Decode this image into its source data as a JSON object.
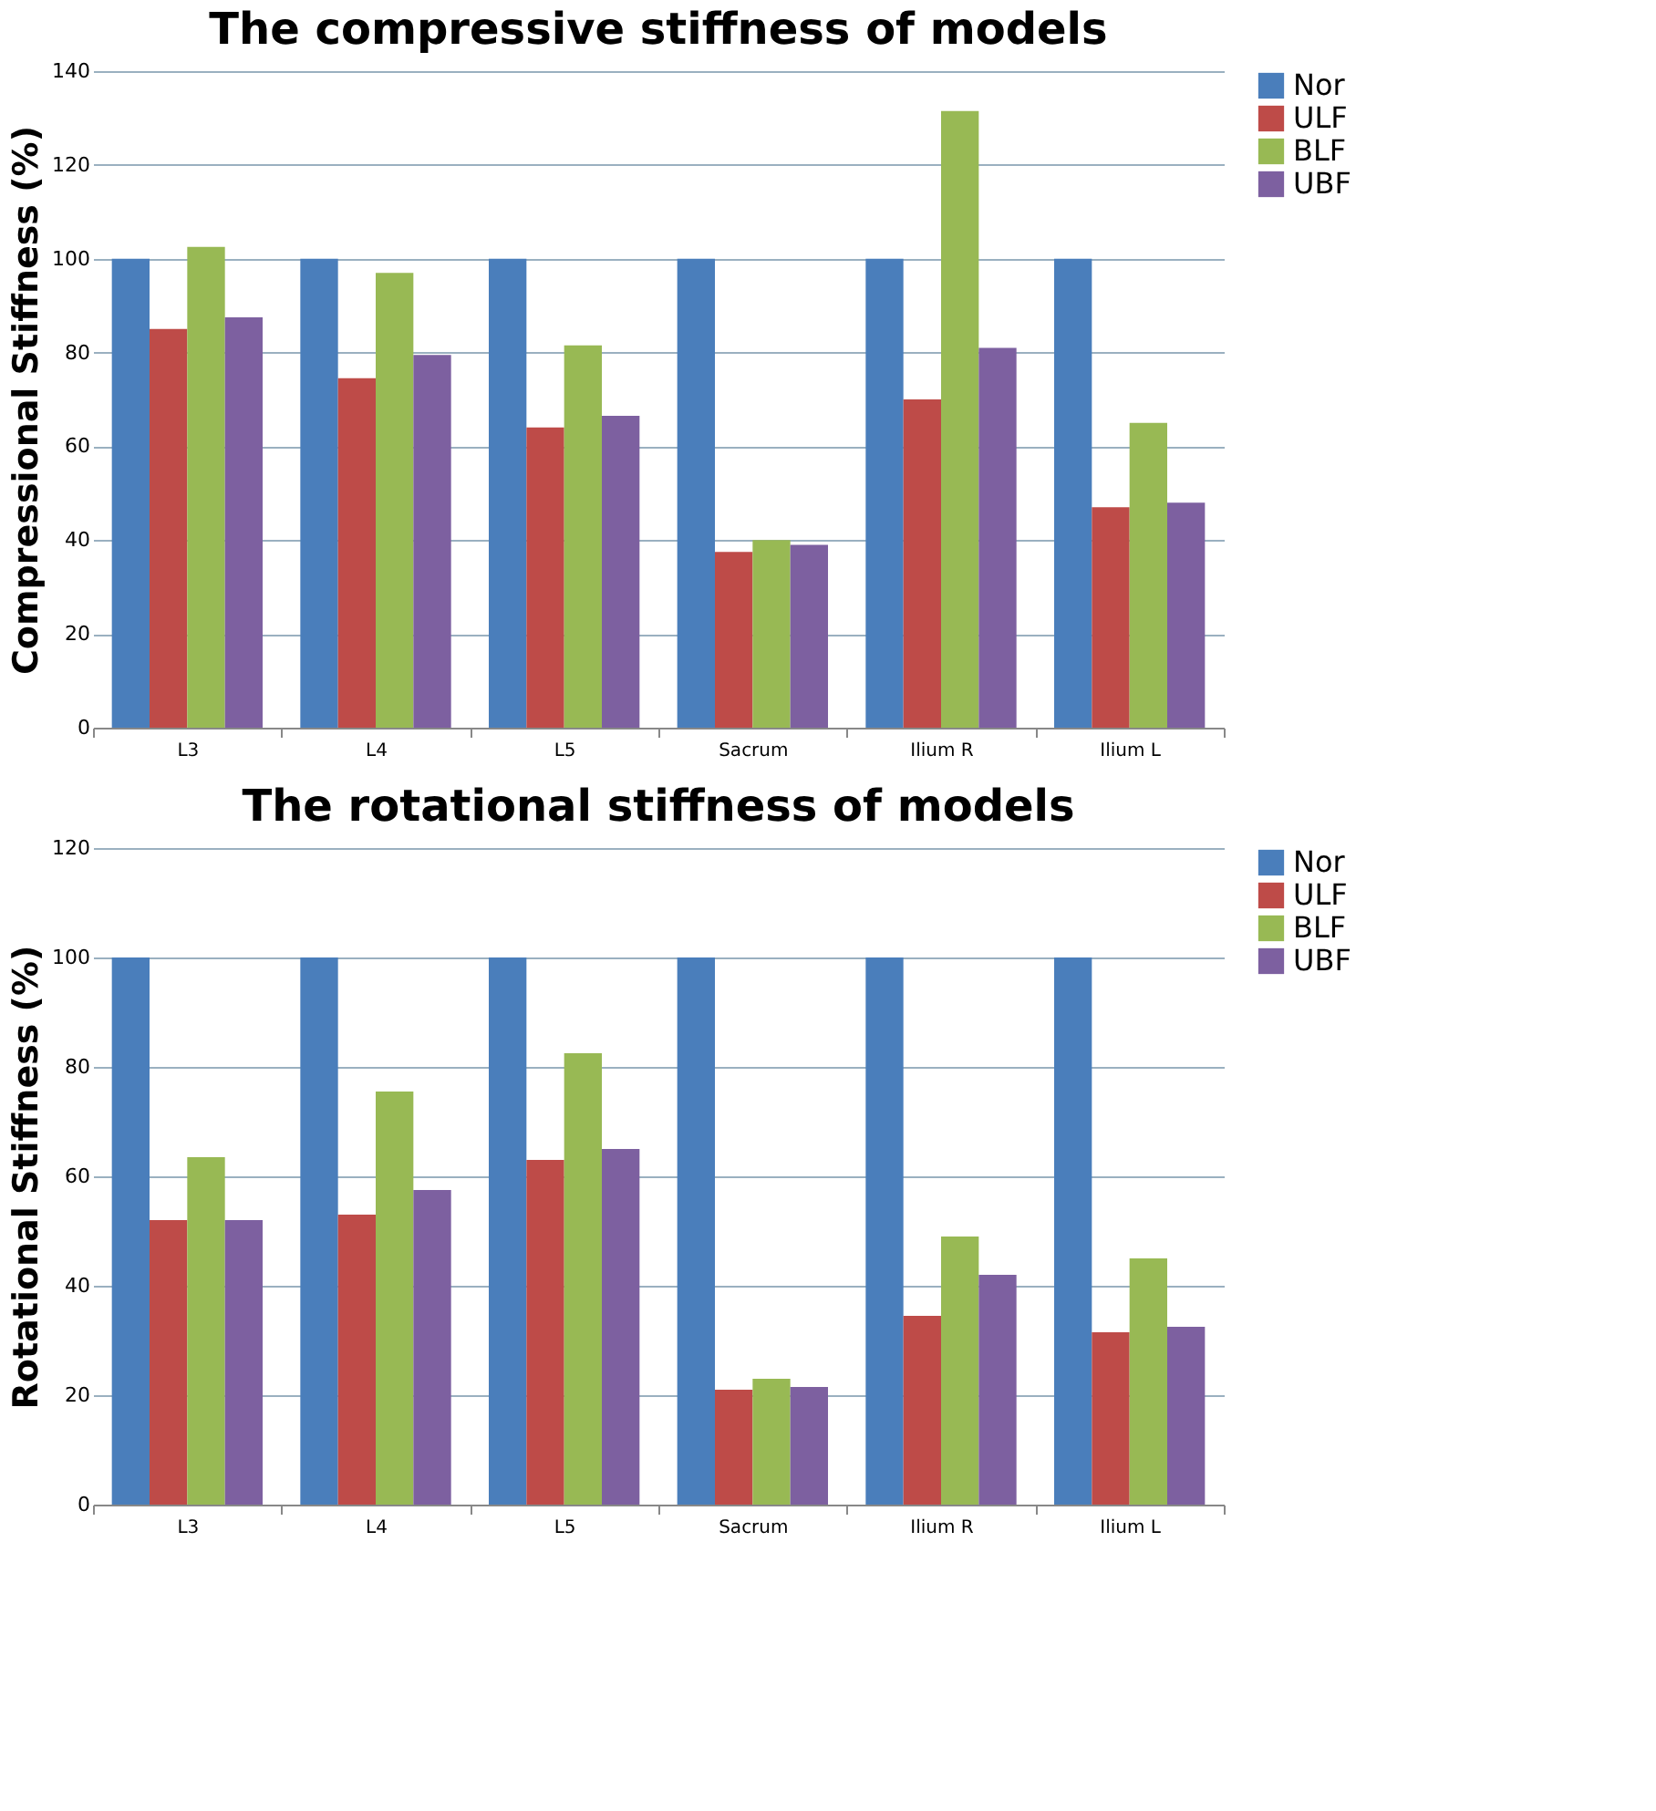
{
  "chart_data": [
    {
      "type": "bar",
      "title": "The compressive stiffness of models",
      "ylabel": "Compressional Stiffness (%)",
      "categories": [
        "L3",
        "L4",
        "L5",
        "Sacrum",
        "Ilium R",
        "Ilium L"
      ],
      "ylim": [
        0,
        140
      ],
      "yticks": [
        0,
        20,
        40,
        60,
        80,
        100,
        120,
        140
      ],
      "grid": "y",
      "legend": "right",
      "series": [
        {
          "name": "Nor",
          "color": "#4a7ebb",
          "values": [
            100,
            100,
            100,
            100,
            100,
            100
          ]
        },
        {
          "name": "ULF",
          "color": "#be4b48",
          "values": [
            85,
            74.5,
            64,
            37.5,
            70,
            47
          ]
        },
        {
          "name": "BLF",
          "color": "#98b954",
          "values": [
            102.5,
            97,
            81.5,
            40,
            131.5,
            65
          ]
        },
        {
          "name": "UBF",
          "color": "#7d60a0",
          "values": [
            87.5,
            79.5,
            66.5,
            39,
            81,
            48
          ]
        }
      ]
    },
    {
      "type": "bar",
      "title": "The rotational stiffness of models",
      "ylabel": "Rotational Stiffness (%)",
      "categories": [
        "L3",
        "L4",
        "L5",
        "Sacrum",
        "Ilium R",
        "Ilium L"
      ],
      "ylim": [
        0,
        120
      ],
      "yticks": [
        0,
        20,
        40,
        60,
        80,
        100,
        120
      ],
      "grid": "y",
      "legend": "right",
      "series": [
        {
          "name": "Nor",
          "color": "#4a7ebb",
          "values": [
            100,
            100,
            100,
            100,
            100,
            100
          ]
        },
        {
          "name": "ULF",
          "color": "#be4b48",
          "values": [
            52,
            53,
            63,
            21,
            34.5,
            31.5
          ]
        },
        {
          "name": "BLF",
          "color": "#98b954",
          "values": [
            63.5,
            75.5,
            82.5,
            23,
            49,
            45
          ]
        },
        {
          "name": "UBF",
          "color": "#7d60a0",
          "values": [
            52,
            57.5,
            65,
            21.5,
            42,
            32.5
          ]
        }
      ]
    }
  ]
}
